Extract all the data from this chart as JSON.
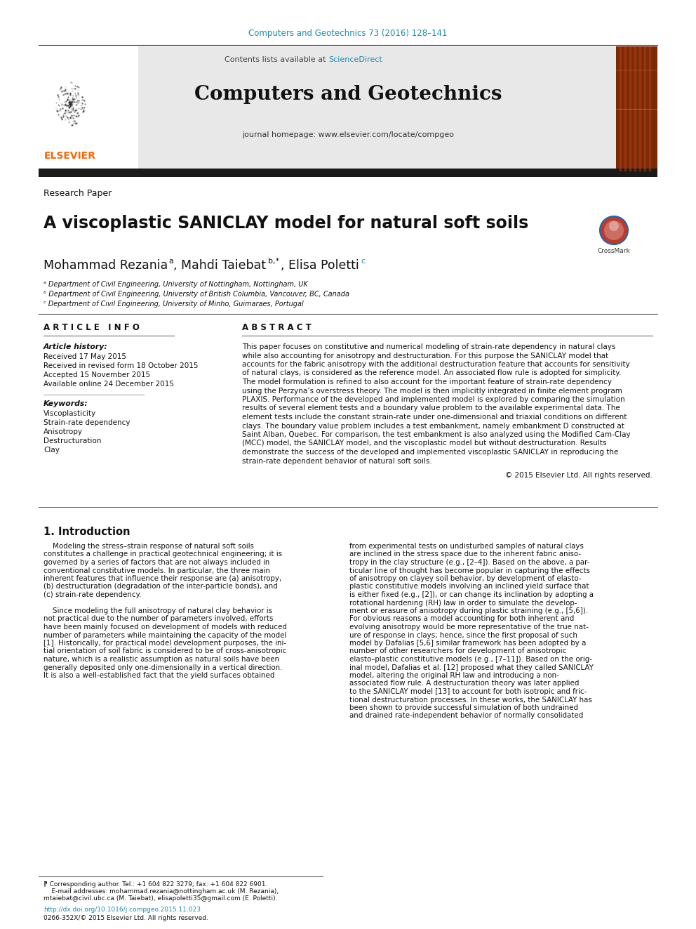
{
  "page_width": 9.92,
  "page_height": 13.23,
  "bg_color": "#ffffff",
  "top_citation": "Computers and Geotechnics 73 (2016) 128–141",
  "top_citation_color": "#1a8cad",
  "journal_header_bg": "#e8e8e8",
  "contents_line": "Contents lists available at",
  "sciencedirect_text": "ScienceDirect",
  "sciencedirect_color": "#1a8cad",
  "journal_name": "Computers and Geotechnics",
  "journal_homepage": "journal homepage: www.elsevier.com/locate/compgeo",
  "elsevier_color": "#ff6600",
  "black_bar_color": "#1a1a1a",
  "research_paper_label": "Research Paper",
  "paper_title": "A viscoplastic SANICLAY model for natural soft soils",
  "author1": "Mohammad Rezania",
  "author1_sup": "a",
  "author2": ", Mahdi Taiebat",
  "author2_sup": "b,*",
  "author3": ", Elisa Poletti",
  "author3_sup": "c",
  "affil_a": "ᵃ Department of Civil Engineering, University of Nottingham, Nottingham, UK",
  "affil_b": "ᵇ Department of Civil Engineering, University of British Columbia, Vancouver, BC, Canada",
  "affil_c": "ᶜ Department of Civil Engineering, University of Minho, Guimaraes, Portugal",
  "article_info_title": "A R T I C L E   I N F O",
  "abstract_title": "A B S T R A C T",
  "article_history_label": "Article history:",
  "received": "Received 17 May 2015",
  "received_revised": "Received in revised form 18 October 2015",
  "accepted": "Accepted 15 November 2015",
  "available": "Available online 24 December 2015",
  "keywords_label": "Keywords:",
  "keywords": [
    "Viscoplasticity",
    "Strain-rate dependency",
    "Anisotropy",
    "Destructuration",
    "Clay"
  ],
  "abstract_lines": [
    "This paper focuses on constitutive and numerical modeling of strain-rate dependency in natural clays",
    "while also accounting for anisotropy and destructuration. For this purpose the SANICLAY model that",
    "accounts for the fabric anisotropy with the additional destructuration feature that accounts for sensitivity",
    "of natural clays, is considered as the reference model. An associated flow rule is adopted for simplicity.",
    "The model formulation is refined to also account for the important feature of strain-rate dependency",
    "using the Perzyna’s overstress theory. The model is then implicitly integrated in finite element program",
    "PLAXIS. Performance of the developed and implemented model is explored by comparing the simulation",
    "results of several element tests and a boundary value problem to the available experimental data. The",
    "element tests include the constant strain-rate under one-dimensional and triaxial conditions on different",
    "clays. The boundary value problem includes a test embankment, namely embankment D constructed at",
    "Saint Alban, Quebec. For comparison, the test embankment is also analyzed using the Modified Cam-Clay",
    "(MCC) model, the SANICLAY model, and the viscoplastic model but without destructuration. Results",
    "demonstrate the success of the developed and implemented viscoplastic SANICLAY in reproducing the",
    "strain-rate dependent behavior of natural soft soils."
  ],
  "copyright_line": "© 2015 Elsevier Ltd. All rights reserved.",
  "intro_title": "1. Introduction",
  "intro_left": [
    "    Modeling the stress–strain response of natural soft soils",
    "constitutes a challenge in practical geotechnical engineering; it is",
    "governed by a series of factors that are not always included in",
    "conventional constitutive models. In particular, the three main",
    "inherent features that influence their response are (a) anisotropy,",
    "(b) destructuration (degradation of the inter-particle bonds), and",
    "(c) strain-rate dependency.",
    "",
    "    Since modeling the full anisotropy of natural clay behavior is",
    "not practical due to the number of parameters involved, efforts",
    "have been mainly focused on development of models with reduced",
    "number of parameters while maintaining the capacity of the model",
    "[1]. Historically, for practical model development purposes, the ini-",
    "tial orientation of soil fabric is considered to be of cross-anisotropic",
    "nature, which is a realistic assumption as natural soils have been",
    "generally deposited only one-dimensionally in a vertical direction.",
    "It is also a well-established fact that the yield surfaces obtained"
  ],
  "intro_right": [
    "from experimental tests on undisturbed samples of natural clays",
    "are inclined in the stress space due to the inherent fabric aniso-",
    "tropy in the clay structure (e.g., [2–4]). Based on the above, a par-",
    "ticular line of thought has become popular in capturing the effects",
    "of anisotropy on clayey soil behavior, by development of elasto-",
    "plastic constitutive models involving an inclined yield surface that",
    "is either fixed (e.g., [2]), or can change its inclination by adopting a",
    "rotational hardening (RH) law in order to simulate the develop-",
    "ment or erasure of anisotropy during plastic straining (e.g., [5,6]).",
    "For obvious reasons a model accounting for both inherent and",
    "evolving anisotropy would be more representative of the true nat-",
    "ure of response in clays; hence, since the first proposal of such",
    "model by Dafalias [5,6] similar framework has been adopted by a",
    "number of other researchers for development of anisotropic",
    "elasto–plastic constitutive models (e.g., [7–11]). Based on the orig-",
    "inal model, Dafalias et al. [12] proposed what they called SANICLAY",
    "model, altering the original RH law and introducing a non-",
    "associated flow rule. A destructuration theory was later applied",
    "to the SANICLAY model [13] to account for both isotropic and fric-",
    "tional destructuration processes. In these works, the SANICLAY has",
    "been shown to provide successful simulation of both undrained",
    "and drained rate-independent behavior of normally consolidated"
  ],
  "footnote_lines": [
    "⁋ Corresponding author. Tel.: +1 604 822 3279; fax: +1 604 822 6901.",
    "    E-mail addresses: mohammad.rezania@nottingham.ac.uk (M. Rezania),",
    "mtaiebat@civil.ubc.ca (M. Taiebat), elisapoletti35@gmail.com (E. Poletti)."
  ],
  "doi_text": "http://dx.doi.org/10.1016/j.compgeo.2015.11.023",
  "doi_color": "#1a8cad",
  "issn_text": "0266-352X/© 2015 Elsevier Ltd. All rights reserved."
}
